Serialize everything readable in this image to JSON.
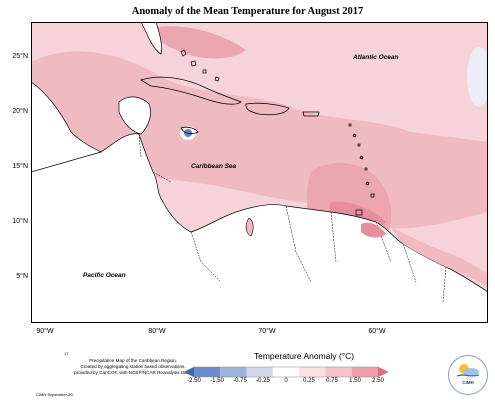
{
  "title": "Anomaly of the Mean Temperature for August 2017",
  "latitude_labels": [
    "25°N",
    "20°N",
    "15°N",
    "10°N",
    "5°N"
  ],
  "longitude_labels": [
    "90°W",
    "80°W",
    "70°W",
    "60°W"
  ],
  "place_labels": {
    "atlantic": "Atlantic Ocean",
    "caribbean": "Caribbean Sea",
    "pacific": "Pacific Ocean"
  },
  "legend": {
    "title": "Temperature Anomaly (°C)",
    "ticks": [
      "-2.50",
      "-1.50",
      "-0.75",
      "-0.25",
      "0",
      "0.25",
      "0.75",
      "1.50",
      "2.50"
    ],
    "colors": [
      "#3f67b0",
      "#6c8ccc",
      "#9fb4da",
      "#cfd9ec",
      "#ffffff",
      "#fbe1e3",
      "#f6c4c8",
      "#f0a0a8",
      "#e86d7a"
    ]
  },
  "footer": {
    "marker": "17",
    "line1": "Precipitation Map of the Caribbean Region.",
    "line2": "Created by aggregating station based observations,",
    "line3": "provided by CariCOF, with NCEP/NCAR Reanalysis Data.",
    "credit": "CIMH September-20"
  },
  "logo_text": "CIMH",
  "colors": {
    "sea_anomaly_low": "#f6d5d9",
    "sea_anomaly_mid": "#f0b9c0",
    "sea_anomaly_high": "#e98f9c",
    "land": "#ffffff",
    "negative_spot": "#5d86c4"
  }
}
